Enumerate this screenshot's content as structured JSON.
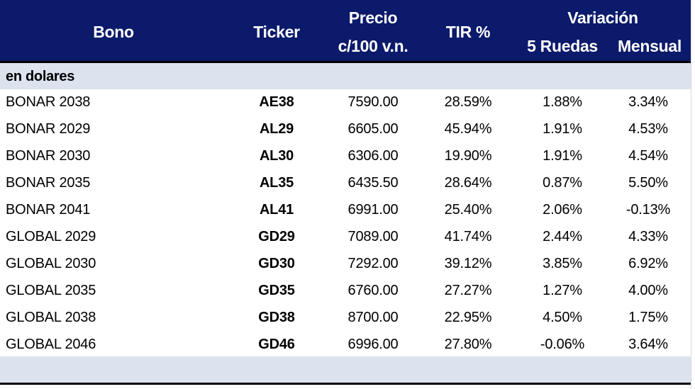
{
  "header": {
    "bono": "Bono",
    "ticker": "Ticker",
    "precio_line1": "Precio",
    "precio_line2": "c/100 v.n.",
    "tir": "TIR %",
    "variacion": "Variación",
    "ruedas": "5 Ruedas",
    "mensual": "Mensual"
  },
  "section": {
    "label": "en dolares"
  },
  "rows": [
    {
      "bono": "BONAR 2038",
      "ticker": "AE38",
      "precio": "7590.00",
      "tir": "28.59%",
      "var5": "1.88%",
      "mensual": "3.34%"
    },
    {
      "bono": "BONAR 2029",
      "ticker": "AL29",
      "precio": "6605.00",
      "tir": "45.94%",
      "var5": "1.91%",
      "mensual": "4.53%"
    },
    {
      "bono": "BONAR 2030",
      "ticker": "AL30",
      "precio": "6306.00",
      "tir": "19.90%",
      "var5": "1.91%",
      "mensual": "4.54%"
    },
    {
      "bono": "BONAR 2035",
      "ticker": "AL35",
      "precio": "6435.50",
      "tir": "28.64%",
      "var5": "0.87%",
      "mensual": "5.50%"
    },
    {
      "bono": "BONAR 2041",
      "ticker": "AL41",
      "precio": "6991.00",
      "tir": "25.40%",
      "var5": "2.06%",
      "mensual": "-0.13%"
    },
    {
      "bono": "GLOBAL 2029",
      "ticker": "GD29",
      "precio": "7089.00",
      "tir": "41.74%",
      "var5": "2.44%",
      "mensual": "4.33%"
    },
    {
      "bono": "GLOBAL 2030",
      "ticker": "GD30",
      "precio": "7292.00",
      "tir": "39.12%",
      "var5": "3.85%",
      "mensual": "6.92%"
    },
    {
      "bono": "GLOBAL 2035",
      "ticker": "GD35",
      "precio": "6760.00",
      "tir": "27.27%",
      "var5": "1.27%",
      "mensual": "4.00%"
    },
    {
      "bono": "GLOBAL 2038",
      "ticker": "GD38",
      "precio": "8700.00",
      "tir": "22.95%",
      "var5": "4.50%",
      "mensual": "1.75%"
    },
    {
      "bono": "GLOBAL 2046",
      "ticker": "GD46",
      "precio": "6996.00",
      "tir": "27.80%",
      "var5": "-0.06%",
      "mensual": "3.64%"
    }
  ],
  "colors": {
    "header_bg": "#0c1a6b",
    "band_bg": "#dce3ef"
  }
}
